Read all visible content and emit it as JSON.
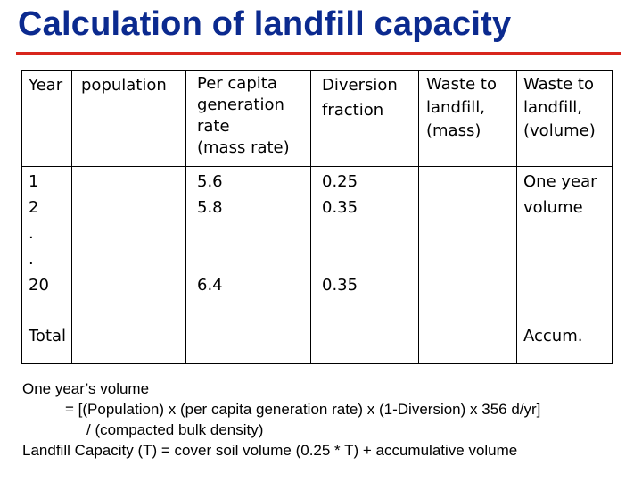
{
  "title": "Calculation of landfill capacity",
  "colors": {
    "title": "#0b2a8f",
    "rule": "#d8261c"
  },
  "table": {
    "headers": {
      "year": "Year",
      "population": "population",
      "per_capita": "Per capita\ngeneration\nrate\n(mass rate)",
      "diversion": "Diversion\nfraction",
      "waste_mass": "Waste to\nlandfill,\n(mass)",
      "waste_volume": "Waste to\nlandfill,\n(volume)"
    },
    "body": {
      "year": "1\n2\n.\n.\n20",
      "per_capita": "5.6\n5.8\n\n\n6.4",
      "diversion": "0.25\n0.35\n\n\n0.35",
      "waste_volume": "One year\nvolume"
    },
    "footer": {
      "total": "Total",
      "accum": "Accum."
    }
  },
  "notes": [
    "One year’s volume",
    "= [(Population) x (per capita generation rate) x (1-Diversion) x 356 d/yr]",
    "/ (compacted bulk density)",
    "Landfill Capacity (T) = cover soil volume (0.25 * T) + accumulative volume"
  ]
}
